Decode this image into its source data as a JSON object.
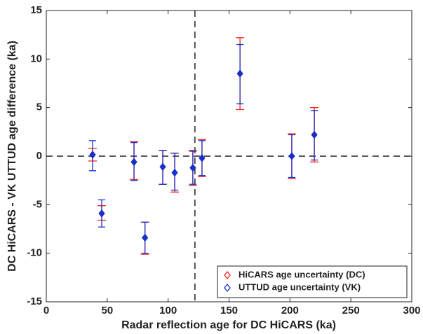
{
  "chart_data": {
    "type": "scatter",
    "xlabel": "Radar reflection age for DC HiCARS (ka)",
    "ylabel": "DC HiCARS - VK UTTUD  age difference (ka)",
    "x": [
      38,
      45.5,
      72,
      81,
      95.6,
      105.4,
      120.3,
      127.8,
      159,
      201.5,
      220
    ],
    "values": [
      0.15,
      -5.9,
      -0.6,
      -8.4,
      -1.1,
      -1.7,
      -1.2,
      -0.2,
      8.5,
      0,
      2.2
    ],
    "color": "#1a2fc8",
    "series": [
      {
        "name": "HiCARS age uncertainty (DC)",
        "color": "#ff2020",
        "upper": [
          0.8,
          -5.1,
          1.5,
          -6.8,
          0.6,
          0.3,
          0.6,
          1.7,
          12.2,
          2.3,
          5.0
        ],
        "lower": [
          -0.5,
          -6.6,
          -2.4,
          -10.1,
          -2.9,
          -3.7,
          -3.0,
          -2.1,
          4.8,
          -2.3,
          -0.6
        ]
      },
      {
        "name": "UTTUD age uncertainty (VK)",
        "color": "#1a2fc8",
        "upper": [
          1.6,
          -4.5,
          1.4,
          -6.8,
          0.6,
          0.3,
          0.5,
          1.6,
          11.5,
          2.2,
          4.7
        ],
        "lower": [
          -1.5,
          -7.3,
          -2.5,
          -10.0,
          -2.9,
          -3.5,
          -2.9,
          -2.0,
          5.4,
          -2.2,
          -0.4
        ]
      }
    ],
    "xlim": [
      0,
      300
    ],
    "xticks": [
      0,
      50,
      100,
      150,
      200,
      250,
      300
    ],
    "ylim": [
      -15,
      15
    ],
    "yticks": [
      -15,
      -10,
      -5,
      0,
      5,
      10,
      15
    ],
    "vline": 122,
    "hline": 0,
    "legend": "lower right"
  }
}
